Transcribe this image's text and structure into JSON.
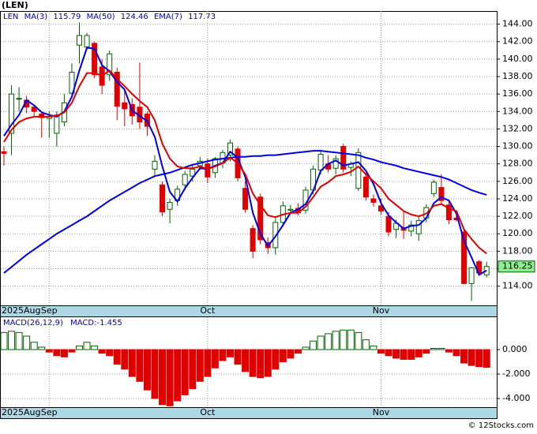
{
  "chart_data": [
    {
      "type": "candlestick",
      "title": "(LEN)",
      "symbol": "LEN",
      "categories": [
        "2025Aug",
        null,
        null,
        null,
        null,
        null,
        "Sep",
        null,
        null,
        null,
        null,
        null,
        null,
        null,
        null,
        null,
        null,
        null,
        null,
        null,
        null,
        null,
        null,
        null,
        null,
        null,
        null,
        "Oct",
        null,
        null,
        null,
        null,
        null,
        null,
        null,
        null,
        null,
        null,
        null,
        null,
        null,
        null,
        null,
        null,
        null,
        null,
        null,
        null,
        null,
        null,
        "Nov",
        null,
        null,
        null,
        null,
        null,
        null,
        null,
        null,
        null,
        null,
        null,
        null,
        null,
        null
      ],
      "open": [
        129.4,
        131.5,
        135.5,
        135.3,
        134.5,
        133.7,
        133.2,
        131.5,
        132.8,
        136.1,
        141.6,
        141.4,
        141.8,
        139.1,
        138.2,
        138.5,
        135,
        134.8,
        134.5,
        133.7,
        127.4,
        125.6,
        122.8,
        123.8,
        125.6,
        126.6,
        127.8,
        128,
        127,
        128.1,
        129,
        129.7,
        125.2,
        120.6,
        124.2,
        119,
        118.4,
        121.3,
        122.7,
        122.9,
        122.7,
        125,
        127.3,
        128,
        127.5,
        130,
        127.6,
        125.2,
        126.5,
        124,
        123.2,
        122,
        120.5,
        120.7,
        120.3,
        120,
        121.8,
        124.6,
        125.3,
        123.3,
        121.8,
        120.2,
        114.3,
        116.8,
        115.3
      ],
      "high": [
        130,
        137,
        136.8,
        135.8,
        134.8,
        134,
        134,
        134,
        136,
        139.5,
        144.2,
        143,
        142,
        140,
        141,
        139,
        136.5,
        135.5,
        139.6,
        134,
        129,
        126,
        124,
        125.5,
        127.2,
        128,
        128.8,
        128.6,
        128.8,
        129.6,
        130.8,
        130,
        126,
        121,
        124.6,
        119.6,
        121.8,
        123.7,
        123.3,
        123.5,
        125.4,
        127.8,
        129.6,
        129,
        129,
        130.3,
        128.3,
        129.8,
        127,
        124.5,
        124,
        122.5,
        121.6,
        122.5,
        121.5,
        122,
        123.4,
        126.2,
        126.8,
        123.7,
        122.3,
        120.4,
        116.2,
        117,
        116.8
      ],
      "low": [
        127.8,
        129,
        134,
        133.8,
        133.5,
        131,
        131,
        130,
        132.3,
        135.5,
        139.5,
        141,
        137.8,
        136,
        137.5,
        133,
        132.3,
        132.5,
        132,
        131.2,
        126.5,
        122,
        121.2,
        123.2,
        125,
        126,
        127.3,
        125.8,
        126.4,
        127.5,
        128.3,
        126,
        122.4,
        117.2,
        118.8,
        117.7,
        117.6,
        120.8,
        122.3,
        122.1,
        122.3,
        124.5,
        126.8,
        127,
        126.8,
        127,
        126.6,
        124.9,
        123.8,
        123.1,
        122.2,
        119.7,
        119.5,
        119.4,
        119.7,
        119.2,
        121.3,
        124.2,
        123.3,
        121.1,
        121.4,
        114.2,
        112.3,
        115.3,
        115
      ],
      "close": [
        129.2,
        136,
        135.5,
        134.5,
        134,
        133.3,
        133.4,
        133.6,
        135,
        138.5,
        142.7,
        142.7,
        138.2,
        137,
        140.6,
        134.6,
        134.3,
        133.5,
        132.8,
        132.3,
        128.3,
        122.5,
        123.6,
        125.1,
        126.8,
        127.4,
        128.3,
        126.5,
        128.6,
        129.3,
        130.4,
        126.4,
        122.8,
        118,
        119.3,
        118.4,
        121.3,
        123.2,
        122.8,
        122.4,
        125,
        127.4,
        129.1,
        127.4,
        128.6,
        127.4,
        128,
        129.3,
        124.2,
        123.6,
        122.6,
        120.2,
        121.2,
        120.4,
        121,
        121.5,
        123,
        125.9,
        123.8,
        121.6,
        121.6,
        114.3,
        116.1,
        115.5,
        116.25
      ],
      "up_color": "#006400",
      "down_color": "#e00000",
      "series": [
        {
          "name": "MA(3)",
          "color": "#0000e0",
          "values": [
            131.2,
            132.5,
            133.6,
            135.3,
            134.7,
            133.9,
            133.6,
            133.4,
            134,
            135.7,
            138.7,
            141.3,
            141.2,
            139.3,
            138.6,
            137.4,
            136.5,
            134.1,
            133.5,
            132.9,
            131.1,
            127.7,
            124.8,
            123.7,
            125.2,
            126.4,
            127.5,
            127.4,
            127.8,
            128.1,
            129.4,
            128.7,
            126.5,
            122.4,
            120,
            118.6,
            119.7,
            121,
            122.4,
            122.8,
            123.4,
            124.9,
            127.2,
            128,
            128.4,
            127.8,
            128,
            128.2,
            127.2,
            125.7,
            123.5,
            122.1,
            121.3,
            120.6,
            120.9,
            121,
            121.8,
            123.5,
            124.2,
            123.8,
            122.3,
            119.2,
            117.3,
            115.3,
            115.79
          ]
        },
        {
          "name": "MA(50)",
          "color": "#0000e0",
          "values": [
            115.5,
            116.2,
            116.9,
            117.6,
            118.2,
            118.8,
            119.4,
            120,
            120.5,
            121,
            121.5,
            122,
            122.6,
            123.2,
            123.8,
            124.3,
            124.8,
            125.3,
            125.8,
            126.2,
            126.6,
            126.8,
            127,
            127.3,
            127.6,
            127.9,
            128.1,
            128.3,
            128.5,
            128.6,
            128.7,
            128.8,
            128.8,
            128.9,
            128.9,
            129,
            129,
            129.1,
            129.2,
            129.3,
            129.4,
            129.5,
            129.5,
            129.4,
            129.3,
            129.2,
            129.1,
            129,
            128.7,
            128.5,
            128.2,
            128,
            127.8,
            127.5,
            127.3,
            127.1,
            126.9,
            126.7,
            126.5,
            126.2,
            125.8,
            125.4,
            125,
            124.7,
            124.46
          ]
        },
        {
          "name": "EMA(7)",
          "color": "#e00000",
          "values": [
            130.5,
            131.9,
            132.8,
            133.2,
            133.4,
            133.4,
            133.4,
            133.5,
            133.9,
            135,
            136.9,
            138.4,
            138.4,
            138.1,
            138.7,
            137.7,
            136.9,
            136,
            135.2,
            134.5,
            133,
            130.3,
            128.6,
            127.7,
            127.5,
            127.5,
            127.7,
            127.4,
            127.7,
            128.1,
            128.7,
            128.1,
            126.8,
            124.6,
            123.3,
            122.1,
            121.9,
            122.2,
            122.4,
            122.4,
            123.1,
            124.2,
            125.4,
            125.9,
            126.6,
            126.8,
            127.1,
            127.7,
            126.8,
            126,
            125.2,
            124,
            123.3,
            122.6,
            122.2,
            122,
            122.3,
            123.2,
            123.4,
            122.9,
            122.6,
            120.5,
            119.4,
            118.4,
            117.73
          ]
        }
      ],
      "ylim": [
        111.8,
        145.5
      ],
      "yticks": [
        {
          "value": 114,
          "label": "114.00"
        },
        {
          "value": 116,
          "label": "116.00"
        },
        {
          "value": 118,
          "label": "118.00"
        },
        {
          "value": 120,
          "label": "120.00"
        },
        {
          "value": 122,
          "label": "122.00"
        },
        {
          "value": 124,
          "label": "124.00"
        },
        {
          "value": 126,
          "label": "126.00"
        },
        {
          "value": 128,
          "label": "128.00"
        },
        {
          "value": 130,
          "label": "130.00"
        },
        {
          "value": 132,
          "label": "132.00"
        },
        {
          "value": 134,
          "label": "134.00"
        },
        {
          "value": 136,
          "label": "136.00"
        },
        {
          "value": 138,
          "label": "138.00"
        },
        {
          "value": 140,
          "label": "140.00"
        },
        {
          "value": 142,
          "label": "142.00"
        },
        {
          "value": 144,
          "label": "144.00"
        }
      ],
      "grid": true
    },
    {
      "type": "bar",
      "title": "MACD(26,12,9)",
      "subtitle": "MACD:-1.455",
      "values": [
        1.4,
        1.5,
        1.4,
        1.1,
        0.6,
        0.2,
        -0.2,
        -0.5,
        -0.6,
        -0.2,
        0.3,
        0.6,
        0.3,
        -0.3,
        -0.5,
        -1.2,
        -1.6,
        -2.2,
        -2.6,
        -3.3,
        -4,
        -4.5,
        -4.6,
        -4.2,
        -3.7,
        -3.2,
        -2.6,
        -2.2,
        -1.5,
        -0.9,
        -0.6,
        -1.2,
        -1.8,
        -2.2,
        -2.3,
        -2.2,
        -1.6,
        -1,
        -0.7,
        -0.3,
        0.2,
        0.7,
        1.1,
        1.3,
        1.5,
        1.6,
        1.6,
        1.4,
        0.8,
        0.3,
        -0.3,
        -0.5,
        -0.7,
        -0.8,
        -0.8,
        -0.6,
        -0.3,
        0.1,
        0.1,
        -0.2,
        -0.5,
        -1.1,
        -1.3,
        -1.4,
        -1.455
      ],
      "up_color": "#006400",
      "down_color": "#e00000",
      "ylim": [
        -4.71,
        2.65
      ],
      "yticks": [
        {
          "value": 0,
          "label": "0.000"
        },
        {
          "value": -2,
          "label": "-2.000"
        },
        {
          "value": -4,
          "label": "-4.000"
        }
      ],
      "grid": true
    }
  ],
  "footer": "© 12Stocks.com"
}
